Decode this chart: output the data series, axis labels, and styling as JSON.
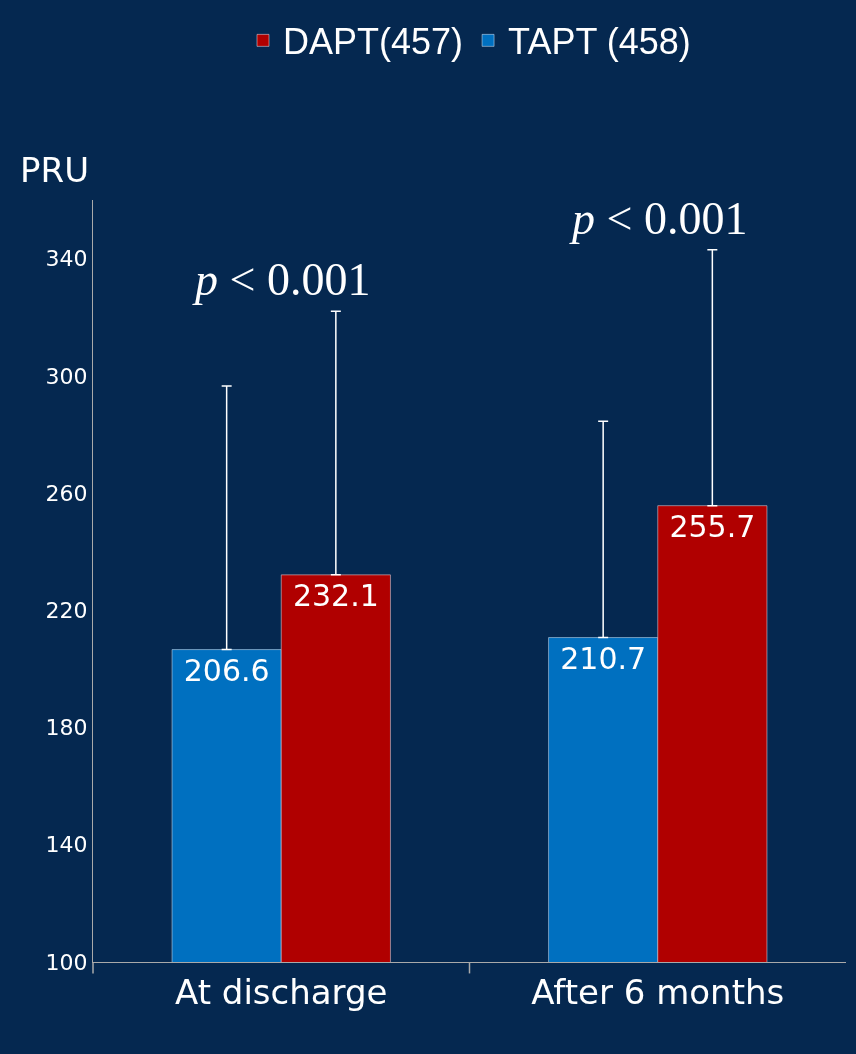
{
  "chart_data": {
    "type": "bar",
    "ylabel": "PRU",
    "categories": [
      "At discharge",
      "After 6 months"
    ],
    "series": [
      {
        "name": "TAPT (458)",
        "color": "#0070c0",
        "values": [
          206.6,
          210.7
        ],
        "errors": [
          [
            206.6,
            296.5
          ],
          [
            210.7,
            284.5
          ]
        ]
      },
      {
        "name": "DAPT(457)",
        "color": "#b00000",
        "values": [
          232.1,
          255.7
        ],
        "errors": [
          [
            232.1,
            322
          ],
          [
            255.7,
            343
          ]
        ]
      }
    ],
    "data_labels": true,
    "ylim": [
      100,
      360
    ],
    "yticks": [
      100,
      140,
      180,
      220,
      260,
      300,
      340
    ],
    "grid": false,
    "legend": "top",
    "annotations": [
      "p < 0.001",
      "p < 0.001"
    ]
  }
}
